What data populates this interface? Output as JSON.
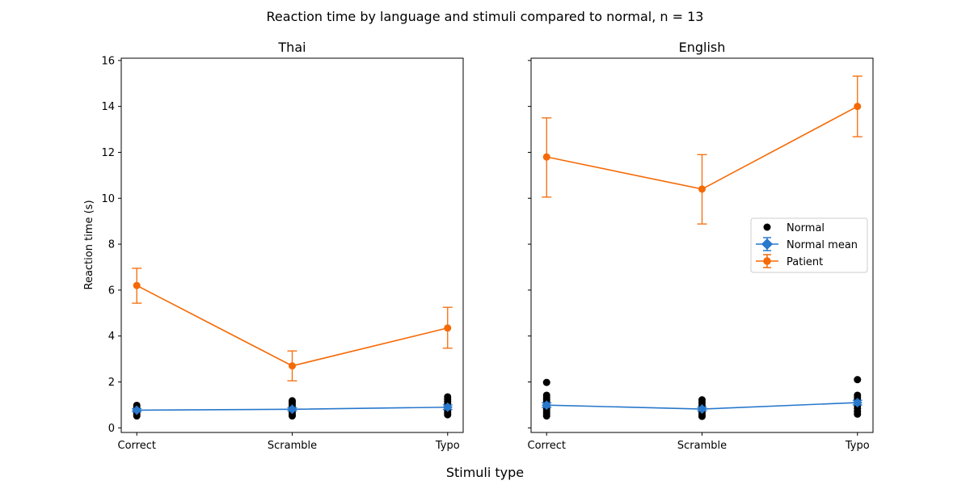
{
  "figure": {
    "title": "Reaction time by language and stimuli compared to normal, n = 13",
    "xlabel": "Stimuli type",
    "colors": {
      "normal_points": "#000000",
      "normal_mean": "#2878cc",
      "patient": "#f56a06"
    }
  },
  "chart_data": [
    {
      "type": "line",
      "title": "Thai",
      "categories": [
        "Correct",
        "Scramble",
        "Typo"
      ],
      "ylabel": "Reaction time (s)",
      "ylim": [
        -0.2,
        16.1
      ],
      "yticks": [
        0,
        2,
        4,
        6,
        8,
        10,
        12,
        14,
        16
      ],
      "series": [
        {
          "name": "Patient",
          "kind": "errorbar",
          "values": [
            6.2,
            2.7,
            4.35
          ],
          "err_low": [
            5.43,
            2.05,
            3.47
          ],
          "err_high": [
            6.95,
            3.35,
            5.25
          ]
        },
        {
          "name": "Normal mean",
          "kind": "errorbar",
          "values": [
            0.77,
            0.81,
            0.9
          ],
          "err_low": [
            0.7,
            0.74,
            0.8
          ],
          "err_high": [
            0.84,
            0.88,
            1.0
          ]
        },
        {
          "name": "Normal",
          "kind": "scatter",
          "points": [
            [
              0,
              0.52
            ],
            [
              0,
              0.6
            ],
            [
              0,
              0.68
            ],
            [
              0,
              0.75
            ],
            [
              0,
              0.82
            ],
            [
              0,
              0.9
            ],
            [
              0,
              0.98
            ],
            [
              1,
              0.52
            ],
            [
              1,
              0.6
            ],
            [
              1,
              0.7
            ],
            [
              1,
              0.8
            ],
            [
              1,
              0.9
            ],
            [
              1,
              1.0
            ],
            [
              1,
              1.1
            ],
            [
              1,
              1.18
            ],
            [
              2,
              0.57
            ],
            [
              2,
              0.65
            ],
            [
              2,
              0.75
            ],
            [
              2,
              0.85
            ],
            [
              2,
              0.95
            ],
            [
              2,
              1.05
            ],
            [
              2,
              1.15
            ],
            [
              2,
              1.25
            ],
            [
              2,
              1.35
            ]
          ]
        }
      ]
    },
    {
      "type": "line",
      "title": "English",
      "categories": [
        "Correct",
        "Scramble",
        "Typo"
      ],
      "ylim": [
        -0.2,
        16.1
      ],
      "series": [
        {
          "name": "Patient",
          "kind": "errorbar",
          "values": [
            11.8,
            10.4,
            14.0
          ],
          "err_low": [
            10.05,
            8.88,
            12.68
          ],
          "err_high": [
            13.5,
            11.9,
            15.32
          ]
        },
        {
          "name": "Normal mean",
          "kind": "errorbar",
          "values": [
            0.99,
            0.82,
            1.1
          ],
          "err_low": [
            0.89,
            0.74,
            1.0
          ],
          "err_high": [
            1.09,
            0.9,
            1.2
          ]
        },
        {
          "name": "Normal",
          "kind": "scatter",
          "points": [
            [
              0,
              0.52
            ],
            [
              0,
              0.62
            ],
            [
              0,
              0.72
            ],
            [
              0,
              0.82
            ],
            [
              0,
              0.92
            ],
            [
              0,
              1.02
            ],
            [
              0,
              1.12
            ],
            [
              0,
              1.22
            ],
            [
              0,
              1.32
            ],
            [
              0,
              1.42
            ],
            [
              0,
              1.98
            ],
            [
              1,
              0.5
            ],
            [
              1,
              0.58
            ],
            [
              1,
              0.68
            ],
            [
              1,
              0.78
            ],
            [
              1,
              0.88
            ],
            [
              1,
              0.98
            ],
            [
              1,
              1.1
            ],
            [
              1,
              1.22
            ],
            [
              2,
              0.6
            ],
            [
              2,
              0.72
            ],
            [
              2,
              0.85
            ],
            [
              2,
              0.98
            ],
            [
              2,
              1.1
            ],
            [
              2,
              1.22
            ],
            [
              2,
              1.32
            ],
            [
              2,
              1.42
            ],
            [
              2,
              2.1
            ]
          ]
        }
      ]
    }
  ],
  "legend": {
    "placement": "center-right of English panel",
    "items": [
      {
        "label": "Normal",
        "marker": "dot",
        "color": "#000000"
      },
      {
        "label": "Normal mean",
        "marker": "diamond-errorbar",
        "color": "#2878cc"
      },
      {
        "label": "Patient",
        "marker": "circle-errorbar",
        "color": "#f56a06"
      }
    ]
  }
}
